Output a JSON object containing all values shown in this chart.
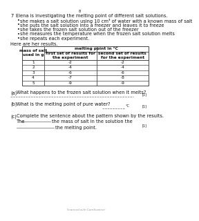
{
  "page_number": "8",
  "question_number": "7",
  "question_text": "Elena is investigating the melting point of different salt solutions.",
  "bullets": [
    "she makes a salt solution using 10 cm³ of water with a known mass of salt",
    "she puts the salt solution into a freezer and leaves it to freeze",
    "she takes the frozen salt solution out of the freezer",
    "she measures the temperature when the frozen salt solution melts",
    "she repeats each experiment."
  ],
  "here_are_results": "Here are her results.",
  "table_col_header_main": "melting point in °C",
  "table_col1_header": "mass of salt\nused in g",
  "table_col2_header": "first set of results for\nthe experiment",
  "table_col3_header": "second set of results\nfor the experiment",
  "table_data": [
    [
      1,
      -2,
      -2
    ],
    [
      2,
      -4,
      -4
    ],
    [
      3,
      -6,
      -6
    ],
    [
      4,
      -7,
      -8
    ],
    [
      5,
      -9,
      -9
    ]
  ],
  "qa_label": "(a)",
  "qa_text": "What happens to the frozen salt solution when it melts?",
  "qa_mark": "[1]",
  "qb_label": "(b)",
  "qb_text": "What is the melting point of pure water?",
  "qb_unit": "°C",
  "qb_mark": "[1]",
  "qc_label": "(c)",
  "qc_text": "Complete the sentence about the pattern shown by the results.",
  "qc_line1_pre": "The",
  "qc_line1_mid": "the mass of salt in the solution the",
  "qc_line2_mid": "the melting point.",
  "qc_mark": "[1]",
  "footer": "Scanned with CamScanner",
  "bg_color": "#ffffff",
  "text_color": "#111111",
  "table_border_color": "#444444",
  "fs_tiny": 3.5,
  "fs_small": 4.2,
  "fs_body": 4.8
}
